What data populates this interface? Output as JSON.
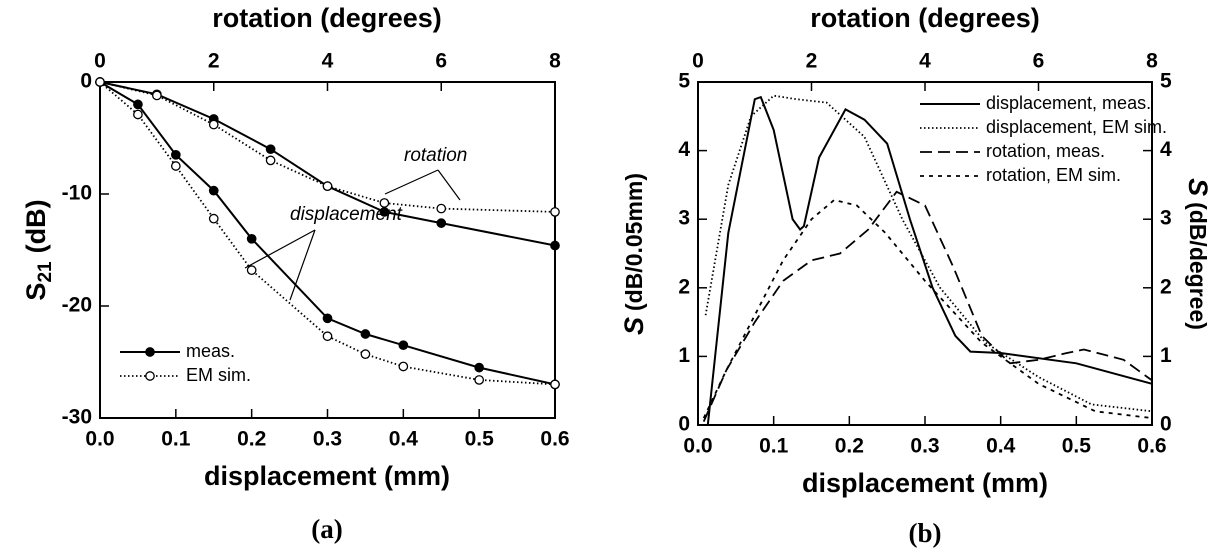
{
  "chart_data": [
    {
      "type": "line",
      "caption": "(a)",
      "xlabel": "displacement (mm)",
      "x2label": "rotation (degrees)",
      "ylabel": [
        "S",
        "21",
        "(dB)"
      ],
      "xlim": [
        0,
        0.6
      ],
      "xticks": [
        {
          "value": 0,
          "label": "0.0"
        },
        {
          "value": 0.1,
          "label": "0.1"
        },
        {
          "value": 0.2,
          "label": "0.2"
        },
        {
          "value": 0.3,
          "label": "0.3"
        },
        {
          "value": 0.4,
          "label": "0.4"
        },
        {
          "value": 0.5,
          "label": "0.5"
        },
        {
          "value": 0.6,
          "label": "0.6"
        }
      ],
      "x2lim": [
        0,
        8
      ],
      "x2ticks": [
        0,
        2,
        4,
        6,
        8
      ],
      "ylim": [
        -30,
        0
      ],
      "yticks": [
        0,
        -10,
        -20,
        -30
      ],
      "legend": "lower left",
      "annotations": [
        "rotation",
        "displacement"
      ],
      "series": [
        {
          "name": "meas.",
          "color": "#000000",
          "dash": "solid",
          "marker": "filled",
          "x": [
            0,
            0.05,
            0.1,
            0.15,
            0.2,
            0.3,
            0.35,
            0.4,
            0.5,
            0.6
          ],
          "values": [
            0,
            -2,
            -6.5,
            -9.7,
            -14,
            -21.1,
            -22.5,
            -23.5,
            -25.5,
            -27
          ]
        },
        {
          "name": "EM sim.",
          "color": "#000000",
          "dash": "dotted",
          "marker": "open",
          "x": [
            0,
            0.05,
            0.1,
            0.15,
            0.2,
            0.3,
            0.35,
            0.4,
            0.5,
            0.6
          ],
          "values": [
            0,
            -2.9,
            -7.5,
            -12.2,
            -16.8,
            -22.7,
            -24.3,
            -25.4,
            -26.6,
            -27
          ]
        },
        {
          "color": "#000000",
          "dash": "solid",
          "marker": "filled",
          "xaxis": "x2",
          "x": [
            0,
            1,
            2,
            3,
            4,
            5,
            6,
            8
          ],
          "values": [
            0,
            -1.1,
            -3.3,
            -6,
            -9.3,
            -11.6,
            -12.6,
            -14.6
          ]
        },
        {
          "color": "#000000",
          "dash": "dotted",
          "marker": "open",
          "xaxis": "x2",
          "x": [
            0,
            1,
            2,
            3,
            4,
            5,
            6,
            8
          ],
          "values": [
            0,
            -1.2,
            -3.8,
            -7,
            -9.3,
            -10.8,
            -11.3,
            -11.6
          ]
        }
      ]
    },
    {
      "type": "line",
      "caption": "(b)",
      "xlabel": "displacement (mm)",
      "x2label": "rotation (degrees)",
      "ylabel": [
        "S",
        "(dB/0.05mm)"
      ],
      "y2label": [
        "S",
        "(dB/degree)"
      ],
      "xlim": [
        0,
        0.6
      ],
      "xticks": [
        {
          "value": 0,
          "label": "0.0"
        },
        {
          "value": 0.1,
          "label": "0.1"
        },
        {
          "value": 0.2,
          "label": "0.2"
        },
        {
          "value": 0.3,
          "label": "0.3"
        },
        {
          "value": 0.4,
          "label": "0.4"
        },
        {
          "value": 0.5,
          "label": "0.5"
        },
        {
          "value": 0.6,
          "label": "0.6"
        }
      ],
      "x2lim": [
        0,
        8
      ],
      "x2ticks": [
        0,
        2,
        4,
        6,
        8
      ],
      "ylim": [
        0,
        5
      ],
      "yticks": [
        0,
        1,
        2,
        3,
        4,
        5
      ],
      "y2lim": [
        0,
        5
      ],
      "y2ticks": [
        0,
        1,
        2,
        3,
        4,
        5
      ],
      "legend": "upper right",
      "series": [
        {
          "name": "displacement, meas.",
          "color": "#000000",
          "dash": "solid",
          "x": [
            0.013,
            0.04,
            0.075,
            0.083,
            0.1,
            0.125,
            0.135,
            0.14,
            0.16,
            0.195,
            0.22,
            0.25,
            0.28,
            0.31,
            0.34,
            0.36,
            0.4,
            0.5,
            0.6
          ],
          "values": [
            0,
            2.8,
            4.75,
            4.78,
            4.3,
            3,
            2.85,
            2.9,
            3.9,
            4.6,
            4.45,
            4.1,
            3,
            2,
            1.3,
            1.07,
            1.05,
            0.9,
            0.6
          ]
        },
        {
          "name": "displacement, EM sim.",
          "color": "#000000",
          "dash": "dotted",
          "x": [
            0.01,
            0.04,
            0.07,
            0.1,
            0.13,
            0.17,
            0.22,
            0.27,
            0.32,
            0.38,
            0.45,
            0.52,
            0.6
          ],
          "values": [
            1.6,
            3.5,
            4.5,
            4.8,
            4.75,
            4.7,
            4.2,
            3,
            2,
            1.2,
            0.7,
            0.3,
            0.2
          ]
        },
        {
          "name": "rotation, meas.",
          "color": "#000000",
          "dash": "dashed",
          "xaxis": "x2",
          "axis": "y2",
          "x": [
            0.1,
            0.5,
            1,
            1.5,
            2,
            2.5,
            3,
            3.5,
            4,
            4.5,
            5,
            5.5,
            6,
            6.5,
            6.8,
            7.5,
            8
          ],
          "values": [
            0.05,
            0.8,
            1.5,
            2.1,
            2.4,
            2.5,
            2.85,
            3.4,
            3.2,
            2.3,
            1.3,
            0.9,
            0.95,
            1.05,
            1.1,
            0.95,
            0.65
          ]
        },
        {
          "name": "rotation, EM sim.",
          "color": "#000000",
          "dash": "shortdash",
          "xaxis": "x2",
          "axis": "y2",
          "x": [
            0.1,
            0.5,
            1,
            1.5,
            2,
            2.4,
            2.8,
            3.3,
            4,
            5,
            6,
            7,
            8
          ],
          "values": [
            0.1,
            0.8,
            1.6,
            2.4,
            3,
            3.28,
            3.2,
            2.8,
            2.1,
            1.2,
            0.6,
            0.2,
            0.1
          ]
        }
      ]
    }
  ]
}
